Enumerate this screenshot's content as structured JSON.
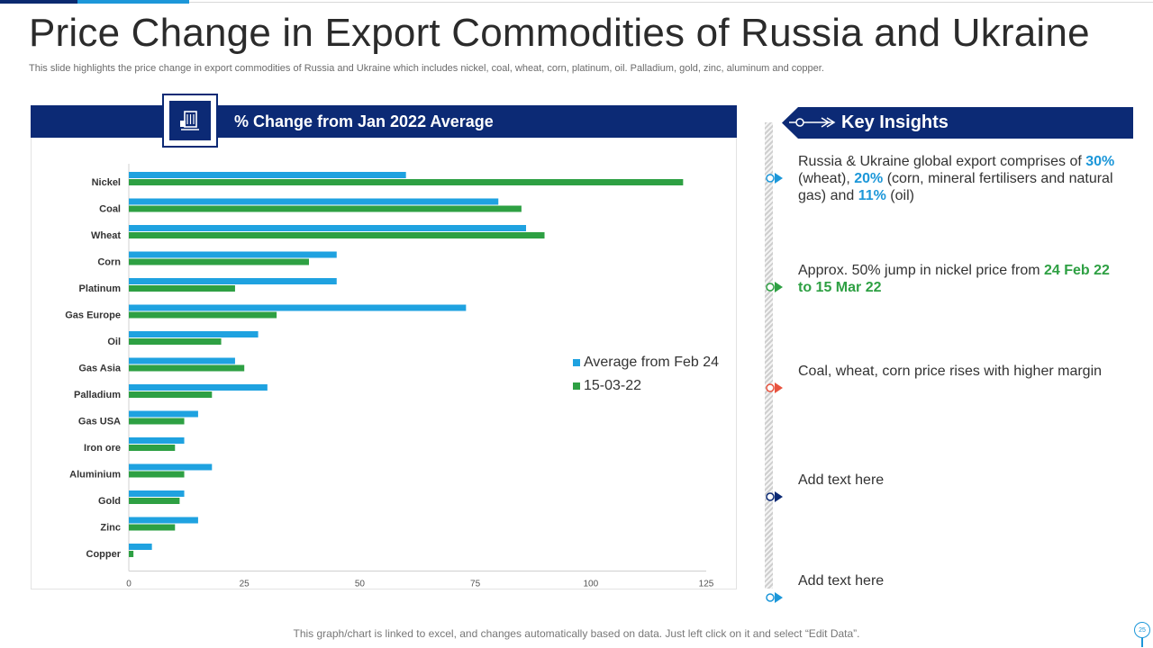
{
  "title": "Price Change in Export Commodities of Russia and Ukraine",
  "subtitle": "This slide highlights the price change in export commodities of Russia and Ukraine which includes nickel, coal, wheat, corn, platinum, oil. Palladium, gold, zinc, aluminum and copper.",
  "chart_header": "% Change from Jan 2022 Average",
  "chart_data": {
    "type": "bar",
    "orientation": "horizontal",
    "title": "% Change from Jan 2022 Average",
    "categories": [
      "Nickel",
      "Coal",
      "Wheat",
      "Corn",
      "Platinum",
      "Gas Europe",
      "Oil",
      "Gas Asia",
      "Palladium",
      "Gas USA",
      "Iron ore",
      "Aluminium",
      "Gold",
      "Zinc",
      "Copper"
    ],
    "series": [
      {
        "name": "Average from Feb 24",
        "color": "#1fa2e0",
        "values": [
          60,
          80,
          86,
          45,
          45,
          73,
          28,
          23,
          30,
          15,
          12,
          18,
          12,
          15,
          5
        ]
      },
      {
        "name": "15-03-22",
        "color": "#2ea043",
        "values": [
          120,
          85,
          90,
          39,
          23,
          32,
          20,
          25,
          18,
          12,
          10,
          12,
          11,
          10,
          1
        ]
      }
    ],
    "xlim": [
      0,
      125
    ],
    "xticks": [
      0,
      25,
      50,
      75,
      100,
      125
    ],
    "grid": false,
    "legend_position": "right"
  },
  "insights": {
    "title": "Key Insights",
    "items": [
      {
        "marker_color": "#1c97d9",
        "parts": [
          {
            "text": "Russia & Ukraine global export comprises of ",
            "style": ""
          },
          {
            "text": "30%",
            "style": "hl-blue"
          },
          {
            "text": " (wheat), ",
            "style": ""
          },
          {
            "text": "20%",
            "style": "hl-blue"
          },
          {
            "text": " (corn, mineral fertilisers and natural gas) and ",
            "style": ""
          },
          {
            "text": "11%",
            "style": "hl-blue"
          },
          {
            "text": " (oil)",
            "style": ""
          }
        ]
      },
      {
        "marker_color": "#2ea043",
        "parts": [
          {
            "text": "Approx. 50% jump in nickel price from ",
            "style": ""
          },
          {
            "text": "24 Feb 22 to 15 Mar 22",
            "style": "hl-green"
          }
        ]
      },
      {
        "marker_color": "#e8533f",
        "parts": [
          {
            "text": "Coal, wheat, corn price rises with higher margin",
            "style": ""
          }
        ]
      },
      {
        "marker_color": "#0c2a75",
        "parts": [
          {
            "text": "Add text here",
            "style": ""
          }
        ]
      },
      {
        "marker_color": "#1c97d9",
        "parts": [
          {
            "text": "Add text here",
            "style": ""
          }
        ]
      }
    ]
  },
  "footer": "This graph/chart is linked to excel,  and changes automatically based on data. Just left click on it and select “Edit Data”.",
  "page_number": "25"
}
